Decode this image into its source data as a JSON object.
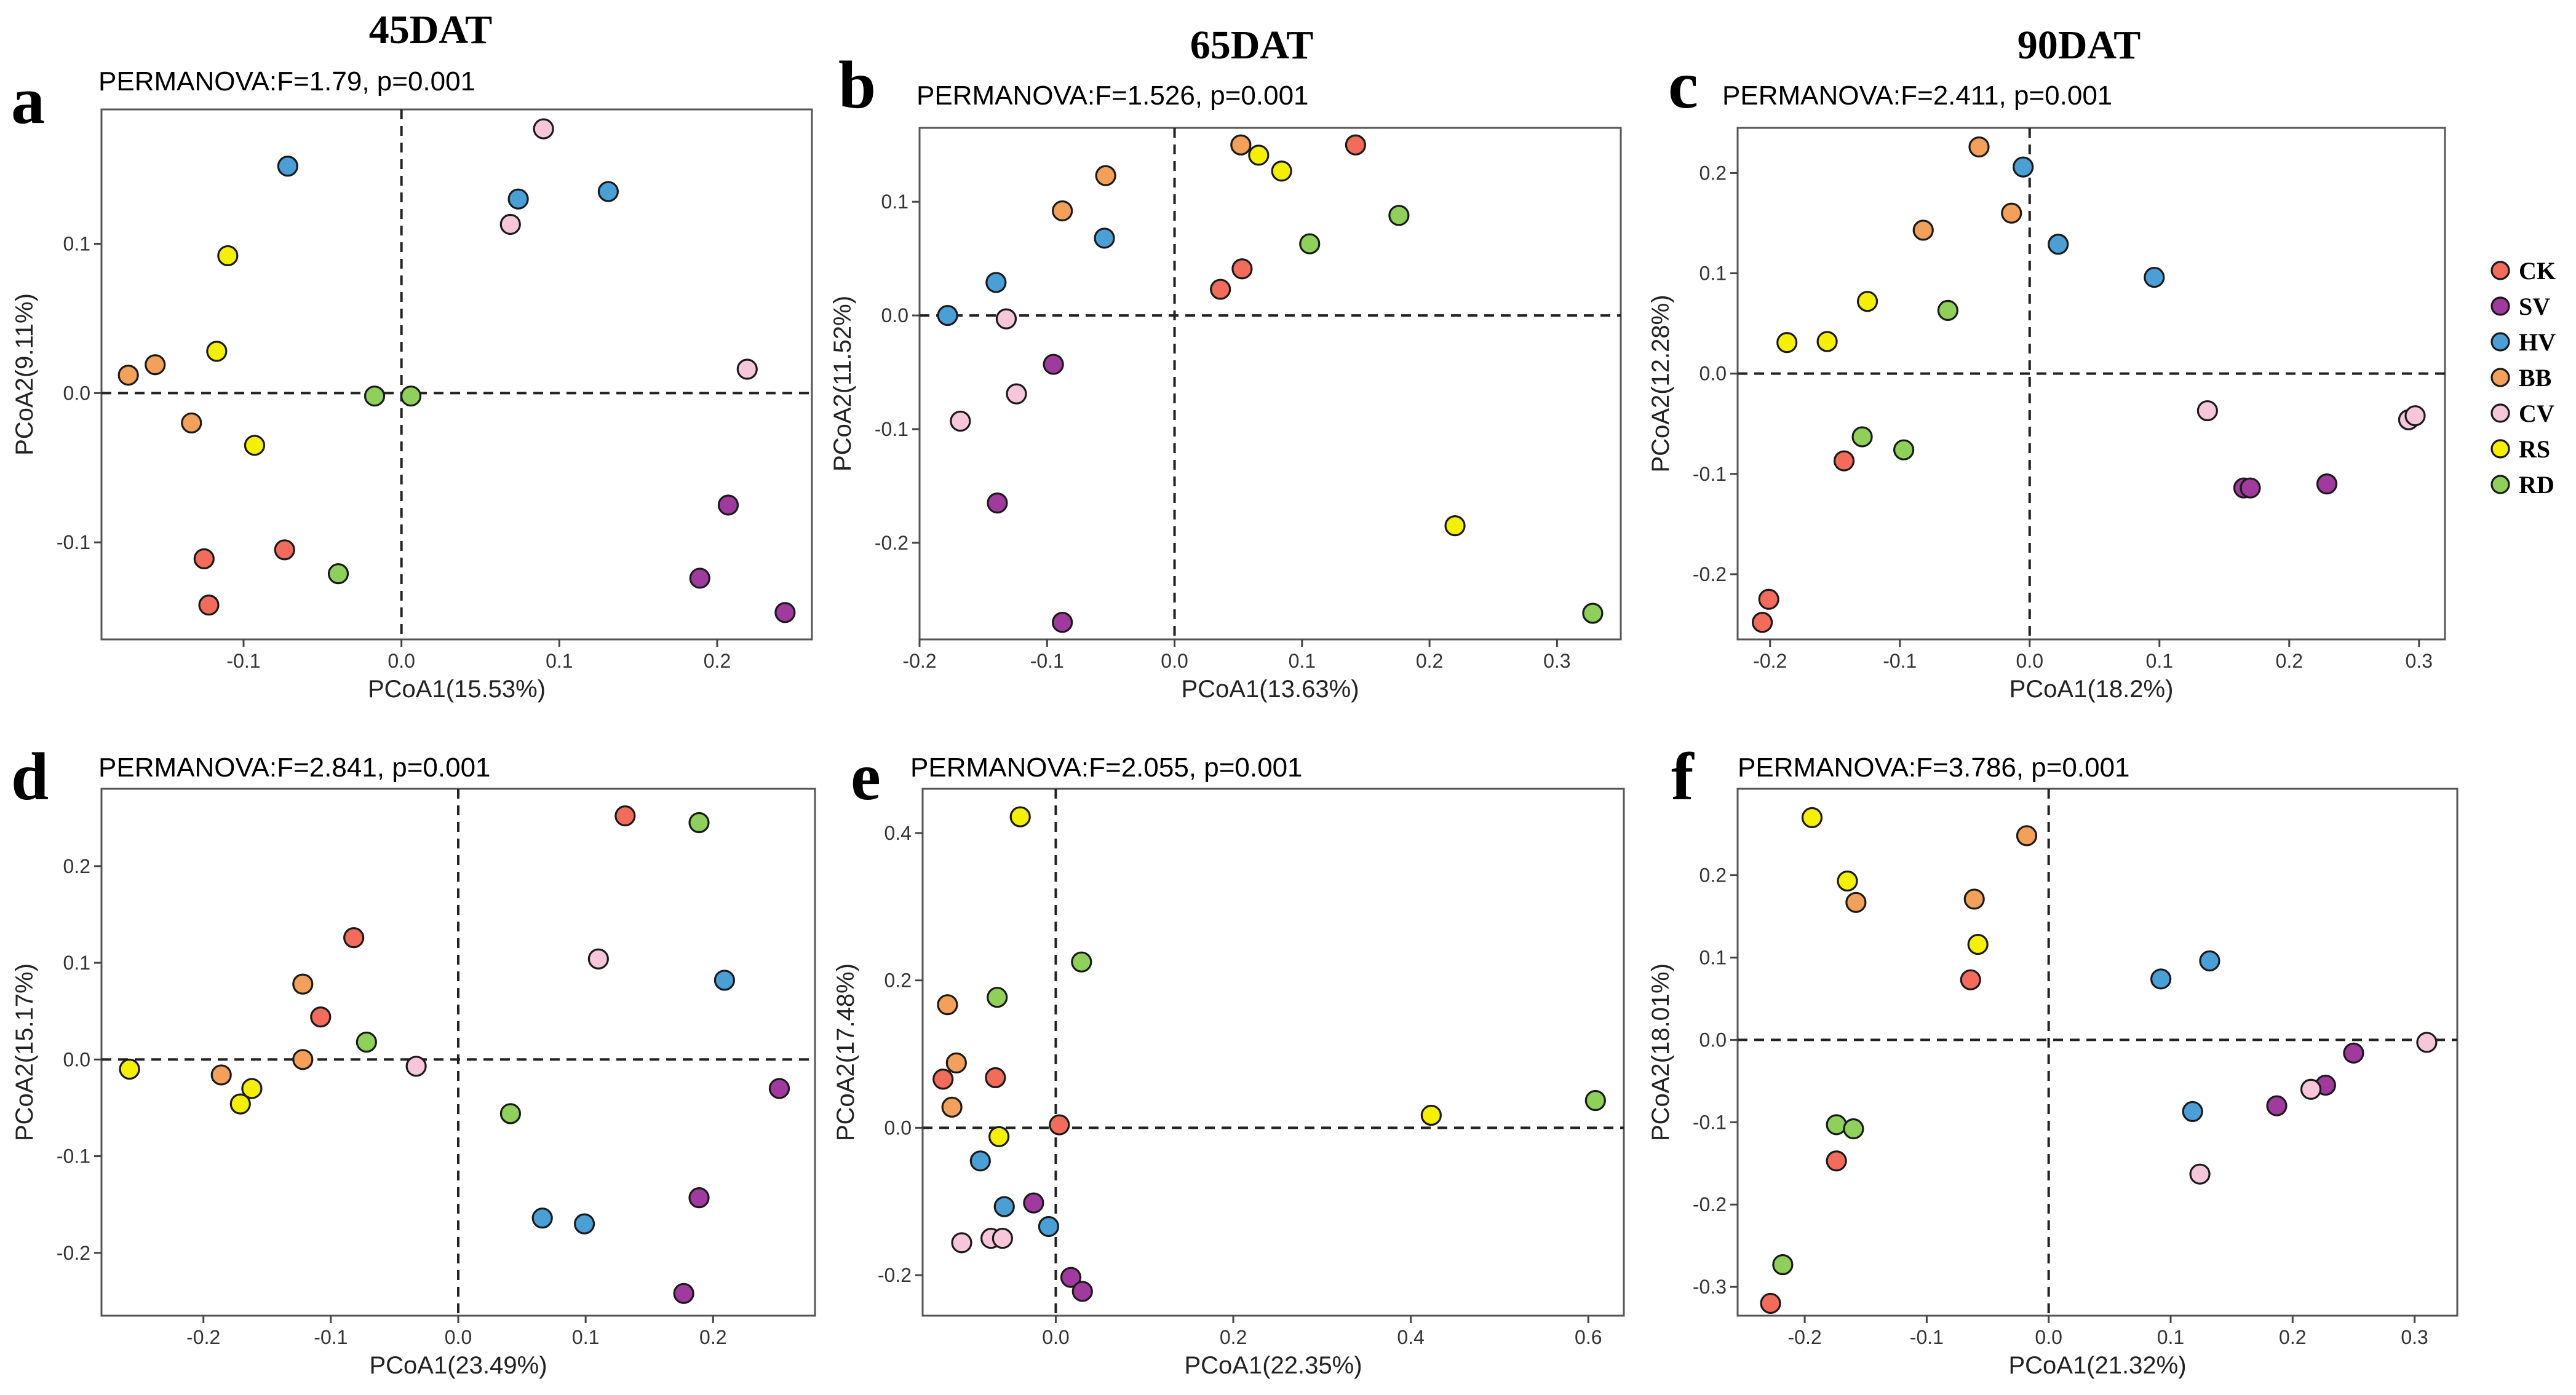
{
  "column_titles": [
    "45DAT",
    "65DAT",
    "90DAT"
  ],
  "legend": [
    {
      "label": "CK",
      "color": "#f26b5b"
    },
    {
      "label": "SV",
      "color": "#a03a9e"
    },
    {
      "label": "HV",
      "color": "#4a9fd6"
    },
    {
      "label": "BB",
      "color": "#f2a05a"
    },
    {
      "label": "CV",
      "color": "#f7c6da"
    },
    {
      "label": "RS",
      "color": "#f5f000"
    },
    {
      "label": "RD",
      "color": "#8fd05a"
    }
  ],
  "chart_data": [
    {
      "type": "scatter",
      "panel": "a",
      "title": "PERMANOVA:F=1.79, p=0.001",
      "xlabel": "PCoA1(15.53%)",
      "ylabel": "PCoA2(9.11%)",
      "xlim": [
        -0.19,
        0.26
      ],
      "ylim": [
        -0.165,
        0.19
      ],
      "xticks": [
        -0.1,
        0.0,
        0.1,
        0.2
      ],
      "xtick_labels": [
        "-0.1",
        "0.0",
        "0.1",
        "0.2"
      ],
      "yticks": [
        -0.1,
        0.0,
        0.1
      ],
      "ytick_labels": [
        "-0.1",
        "0.0",
        "0.1"
      ],
      "points": [
        {
          "group": "CK",
          "x": -0.125,
          "y": -0.111
        },
        {
          "group": "CK",
          "x": -0.122,
          "y": -0.142
        },
        {
          "group": "CK",
          "x": -0.074,
          "y": -0.105
        },
        {
          "group": "SV",
          "x": 0.207,
          "y": -0.075
        },
        {
          "group": "SV",
          "x": 0.189,
          "y": -0.124
        },
        {
          "group": "SV",
          "x": 0.243,
          "y": -0.147
        },
        {
          "group": "HV",
          "x": -0.072,
          "y": 0.152
        },
        {
          "group": "HV",
          "x": 0.074,
          "y": 0.13
        },
        {
          "group": "HV",
          "x": 0.131,
          "y": 0.135
        },
        {
          "group": "BB",
          "x": -0.173,
          "y": 0.012
        },
        {
          "group": "BB",
          "x": -0.156,
          "y": 0.019
        },
        {
          "group": "BB",
          "x": -0.133,
          "y": -0.02
        },
        {
          "group": "CV",
          "x": 0.09,
          "y": 0.177
        },
        {
          "group": "CV",
          "x": 0.069,
          "y": 0.113
        },
        {
          "group": "CV",
          "x": 0.219,
          "y": 0.016
        },
        {
          "group": "RS",
          "x": -0.11,
          "y": 0.092
        },
        {
          "group": "RS",
          "x": -0.117,
          "y": 0.028
        },
        {
          "group": "RS",
          "x": -0.093,
          "y": -0.035
        },
        {
          "group": "RD",
          "x": -0.017,
          "y": -0.002
        },
        {
          "group": "RD",
          "x": 0.006,
          "y": -0.002
        },
        {
          "group": "RD",
          "x": -0.04,
          "y": -0.121
        }
      ]
    },
    {
      "type": "scatter",
      "panel": "b",
      "title": "PERMANOVA:F=1.526, p=0.001",
      "xlabel": "PCoA1(13.63%)",
      "ylabel": "PCoA2(11.52%)",
      "xlim": [
        -0.2,
        0.35
      ],
      "ylim": [
        -0.285,
        0.165
      ],
      "xticks": [
        -0.2,
        -0.1,
        0.0,
        0.1,
        0.2,
        0.3
      ],
      "xtick_labels": [
        "-0.2",
        "-0.1",
        "0.0",
        "0.1",
        "0.2",
        "0.3"
      ],
      "yticks": [
        -0.2,
        -0.1,
        0.0,
        0.1
      ],
      "ytick_labels": [
        "-0.2",
        "-0.1",
        "0.0",
        "0.1"
      ],
      "points": [
        {
          "group": "CK",
          "x": 0.142,
          "y": 0.15
        },
        {
          "group": "CK",
          "x": 0.053,
          "y": 0.041
        },
        {
          "group": "CK",
          "x": 0.036,
          "y": 0.023
        },
        {
          "group": "SV",
          "x": -0.095,
          "y": -0.043
        },
        {
          "group": "SV",
          "x": -0.139,
          "y": -0.165
        },
        {
          "group": "SV",
          "x": -0.088,
          "y": -0.27
        },
        {
          "group": "HV",
          "x": -0.14,
          "y": 0.029
        },
        {
          "group": "HV",
          "x": -0.055,
          "y": 0.068
        },
        {
          "group": "HV",
          "x": -0.178,
          "y": 0.0
        },
        {
          "group": "BB",
          "x": 0.052,
          "y": 0.15
        },
        {
          "group": "BB",
          "x": -0.054,
          "y": 0.123
        },
        {
          "group": "BB",
          "x": -0.088,
          "y": 0.092
        },
        {
          "group": "CV",
          "x": -0.132,
          "y": -0.003
        },
        {
          "group": "CV",
          "x": -0.124,
          "y": -0.069
        },
        {
          "group": "CV",
          "x": -0.168,
          "y": -0.093
        },
        {
          "group": "RS",
          "x": 0.066,
          "y": 0.141
        },
        {
          "group": "RS",
          "x": 0.084,
          "y": 0.127
        },
        {
          "group": "RS",
          "x": 0.22,
          "y": -0.185
        },
        {
          "group": "RD",
          "x": 0.176,
          "y": 0.088
        },
        {
          "group": "RD",
          "x": 0.106,
          "y": 0.063
        },
        {
          "group": "RD",
          "x": 0.328,
          "y": -0.262
        }
      ]
    },
    {
      "type": "scatter",
      "panel": "c",
      "title": "PERMANOVA:F=2.411, p=0.001",
      "xlabel": "PCoA1(18.2%)",
      "ylabel": "PCoA2(12.28%)",
      "xlim": [
        -0.225,
        0.32
      ],
      "ylim": [
        -0.265,
        0.245
      ],
      "xticks": [
        -0.2,
        -0.1,
        0.0,
        0.1,
        0.2,
        0.3
      ],
      "xtick_labels": [
        "-0.2",
        "-0.1",
        "0.0",
        "0.1",
        "0.2",
        "0.3"
      ],
      "yticks": [
        -0.2,
        -0.1,
        0.0,
        0.1,
        0.2
      ],
      "ytick_labels": [
        "-0.2",
        "-0.1",
        "0.0",
        "0.1",
        "0.2"
      ],
      "points": [
        {
          "group": "CK",
          "x": -0.201,
          "y": -0.225
        },
        {
          "group": "CK",
          "x": -0.206,
          "y": -0.248
        },
        {
          "group": "CK",
          "x": -0.143,
          "y": -0.087
        },
        {
          "group": "SV",
          "x": 0.165,
          "y": -0.114
        },
        {
          "group": "SV",
          "x": 0.17,
          "y": -0.114
        },
        {
          "group": "SV",
          "x": 0.229,
          "y": -0.11
        },
        {
          "group": "HV",
          "x": -0.005,
          "y": 0.206
        },
        {
          "group": "HV",
          "x": 0.022,
          "y": 0.129
        },
        {
          "group": "HV",
          "x": 0.096,
          "y": 0.096
        },
        {
          "group": "BB",
          "x": -0.039,
          "y": 0.226
        },
        {
          "group": "BB",
          "x": -0.014,
          "y": 0.16
        },
        {
          "group": "BB",
          "x": -0.082,
          "y": 0.143
        },
        {
          "group": "CV",
          "x": 0.137,
          "y": -0.037
        },
        {
          "group": "CV",
          "x": 0.292,
          "y": -0.046
        },
        {
          "group": "CV",
          "x": 0.297,
          "y": -0.042
        },
        {
          "group": "RS",
          "x": -0.125,
          "y": 0.072
        },
        {
          "group": "RS",
          "x": -0.187,
          "y": 0.031
        },
        {
          "group": "RS",
          "x": -0.156,
          "y": 0.032
        },
        {
          "group": "RD",
          "x": -0.063,
          "y": 0.063
        },
        {
          "group": "RD",
          "x": -0.129,
          "y": -0.063
        },
        {
          "group": "RD",
          "x": -0.097,
          "y": -0.076
        }
      ]
    },
    {
      "type": "scatter",
      "panel": "d",
      "title": "PERMANOVA:F=2.841, p=0.001",
      "xlabel": "PCoA1(23.49%)",
      "ylabel": "PCoA2(15.17%)",
      "xlim": [
        -0.28,
        0.28
      ],
      "ylim": [
        -0.265,
        0.28
      ],
      "xticks": [
        -0.2,
        -0.1,
        0.0,
        0.1,
        0.2
      ],
      "xtick_labels": [
        "-0.2",
        "-0.1",
        "0.0",
        "0.1",
        "0.2"
      ],
      "yticks": [
        -0.2,
        -0.1,
        0.0,
        0.1,
        0.2
      ],
      "ytick_labels": [
        "-0.2",
        "-0.1",
        "0.0",
        "0.1",
        "0.2"
      ],
      "points": [
        {
          "group": "CK",
          "x": 0.131,
          "y": 0.252
        },
        {
          "group": "CK",
          "x": -0.082,
          "y": 0.126
        },
        {
          "group": "CK",
          "x": -0.108,
          "y": 0.044
        },
        {
          "group": "SV",
          "x": 0.252,
          "y": -0.03
        },
        {
          "group": "SV",
          "x": 0.189,
          "y": -0.143
        },
        {
          "group": "SV",
          "x": 0.177,
          "y": -0.242
        },
        {
          "group": "HV",
          "x": 0.209,
          "y": 0.082
        },
        {
          "group": "HV",
          "x": 0.066,
          "y": -0.164
        },
        {
          "group": "HV",
          "x": 0.099,
          "y": -0.17
        },
        {
          "group": "BB",
          "x": -0.122,
          "y": 0.078
        },
        {
          "group": "BB",
          "x": -0.122,
          "y": 0.0
        },
        {
          "group": "BB",
          "x": -0.186,
          "y": -0.016
        },
        {
          "group": "CV",
          "x": 0.11,
          "y": 0.104
        },
        {
          "group": "CV",
          "x": -0.033,
          "y": -0.007
        },
        {
          "group": "RS",
          "x": -0.258,
          "y": -0.01
        },
        {
          "group": "RS",
          "x": -0.162,
          "y": -0.03
        },
        {
          "group": "RS",
          "x": -0.171,
          "y": -0.046
        },
        {
          "group": "RD",
          "x": 0.189,
          "y": 0.245
        },
        {
          "group": "RD",
          "x": -0.072,
          "y": 0.018
        },
        {
          "group": "RD",
          "x": 0.041,
          "y": -0.056
        }
      ]
    },
    {
      "type": "scatter",
      "panel": "e",
      "title": "PERMANOVA:F=2.055, p=0.001",
      "xlabel": "PCoA1(22.35%)",
      "ylabel": "PCoA2(17.48%)",
      "xlim": [
        -0.15,
        0.64
      ],
      "ylim": [
        -0.255,
        0.46
      ],
      "xticks": [
        0.0,
        0.2,
        0.4,
        0.6
      ],
      "xtick_labels": [
        "0.0",
        "0.2",
        "0.4",
        "0.6"
      ],
      "yticks": [
        -0.2,
        0.0,
        0.2,
        0.4
      ],
      "ytick_labels": [
        "-0.2",
        "0.0",
        "0.2",
        "0.4"
      ],
      "points": [
        {
          "group": "CK",
          "x": -0.068,
          "y": 0.068
        },
        {
          "group": "CK",
          "x": -0.127,
          "y": 0.066
        },
        {
          "group": "CK",
          "x": 0.004,
          "y": 0.004
        },
        {
          "group": "SV",
          "x": -0.025,
          "y": -0.102
        },
        {
          "group": "SV",
          "x": 0.017,
          "y": -0.203
        },
        {
          "group": "SV",
          "x": 0.03,
          "y": -0.222
        },
        {
          "group": "HV",
          "x": -0.085,
          "y": -0.045
        },
        {
          "group": "HV",
          "x": -0.058,
          "y": -0.107
        },
        {
          "group": "HV",
          "x": -0.008,
          "y": -0.134
        },
        {
          "group": "BB",
          "x": -0.122,
          "y": 0.167
        },
        {
          "group": "BB",
          "x": -0.112,
          "y": 0.088
        },
        {
          "group": "BB",
          "x": -0.117,
          "y": 0.028
        },
        {
          "group": "CV",
          "x": -0.106,
          "y": -0.156
        },
        {
          "group": "CV",
          "x": -0.073,
          "y": -0.15
        },
        {
          "group": "CV",
          "x": -0.06,
          "y": -0.15
        },
        {
          "group": "RS",
          "x": -0.04,
          "y": 0.422
        },
        {
          "group": "RS",
          "x": -0.064,
          "y": -0.012
        },
        {
          "group": "RS",
          "x": 0.423,
          "y": 0.017
        },
        {
          "group": "RD",
          "x": -0.066,
          "y": 0.177
        },
        {
          "group": "RD",
          "x": 0.029,
          "y": 0.225
        },
        {
          "group": "RD",
          "x": 0.608,
          "y": 0.037
        }
      ]
    },
    {
      "type": "scatter",
      "panel": "f",
      "title": "PERMANOVA:F=3.786, p=0.001",
      "xlabel": "PCoA1(21.32%)",
      "ylabel": "PCoA2(18.01%)",
      "xlim": [
        -0.255,
        0.335
      ],
      "ylim": [
        -0.335,
        0.305
      ],
      "xticks": [
        -0.2,
        -0.1,
        0.0,
        0.1,
        0.2,
        0.3
      ],
      "xtick_labels": [
        "-0.2",
        "-0.1",
        "0.0",
        "0.1",
        "0.2",
        "0.3"
      ],
      "yticks": [
        -0.3,
        -0.2,
        -0.1,
        0.0,
        0.1,
        0.2
      ],
      "ytick_labels": [
        "-0.3",
        "-0.2",
        "-0.1",
        "0.0",
        "0.1",
        "0.2"
      ],
      "points": [
        {
          "group": "CK",
          "x": -0.064,
          "y": 0.073
        },
        {
          "group": "CK",
          "x": -0.174,
          "y": -0.147
        },
        {
          "group": "CK",
          "x": -0.228,
          "y": -0.32
        },
        {
          "group": "SV",
          "x": 0.25,
          "y": -0.016
        },
        {
          "group": "SV",
          "x": 0.227,
          "y": -0.055
        },
        {
          "group": "SV",
          "x": 0.187,
          "y": -0.08
        },
        {
          "group": "HV",
          "x": 0.132,
          "y": 0.096
        },
        {
          "group": "HV",
          "x": 0.092,
          "y": 0.074
        },
        {
          "group": "HV",
          "x": 0.118,
          "y": -0.087
        },
        {
          "group": "BB",
          "x": -0.018,
          "y": 0.248
        },
        {
          "group": "BB",
          "x": -0.061,
          "y": 0.171
        },
        {
          "group": "BB",
          "x": -0.158,
          "y": 0.167
        },
        {
          "group": "CV",
          "x": 0.31,
          "y": -0.003
        },
        {
          "group": "CV",
          "x": 0.215,
          "y": -0.06
        },
        {
          "group": "CV",
          "x": 0.124,
          "y": -0.163
        },
        {
          "group": "RS",
          "x": -0.194,
          "y": 0.27
        },
        {
          "group": "RS",
          "x": -0.165,
          "y": 0.193
        },
        {
          "group": "RS",
          "x": -0.058,
          "y": 0.116
        },
        {
          "group": "RD",
          "x": -0.174,
          "y": -0.103
        },
        {
          "group": "RD",
          "x": -0.16,
          "y": -0.108
        },
        {
          "group": "RD",
          "x": -0.218,
          "y": -0.273
        }
      ]
    }
  ]
}
